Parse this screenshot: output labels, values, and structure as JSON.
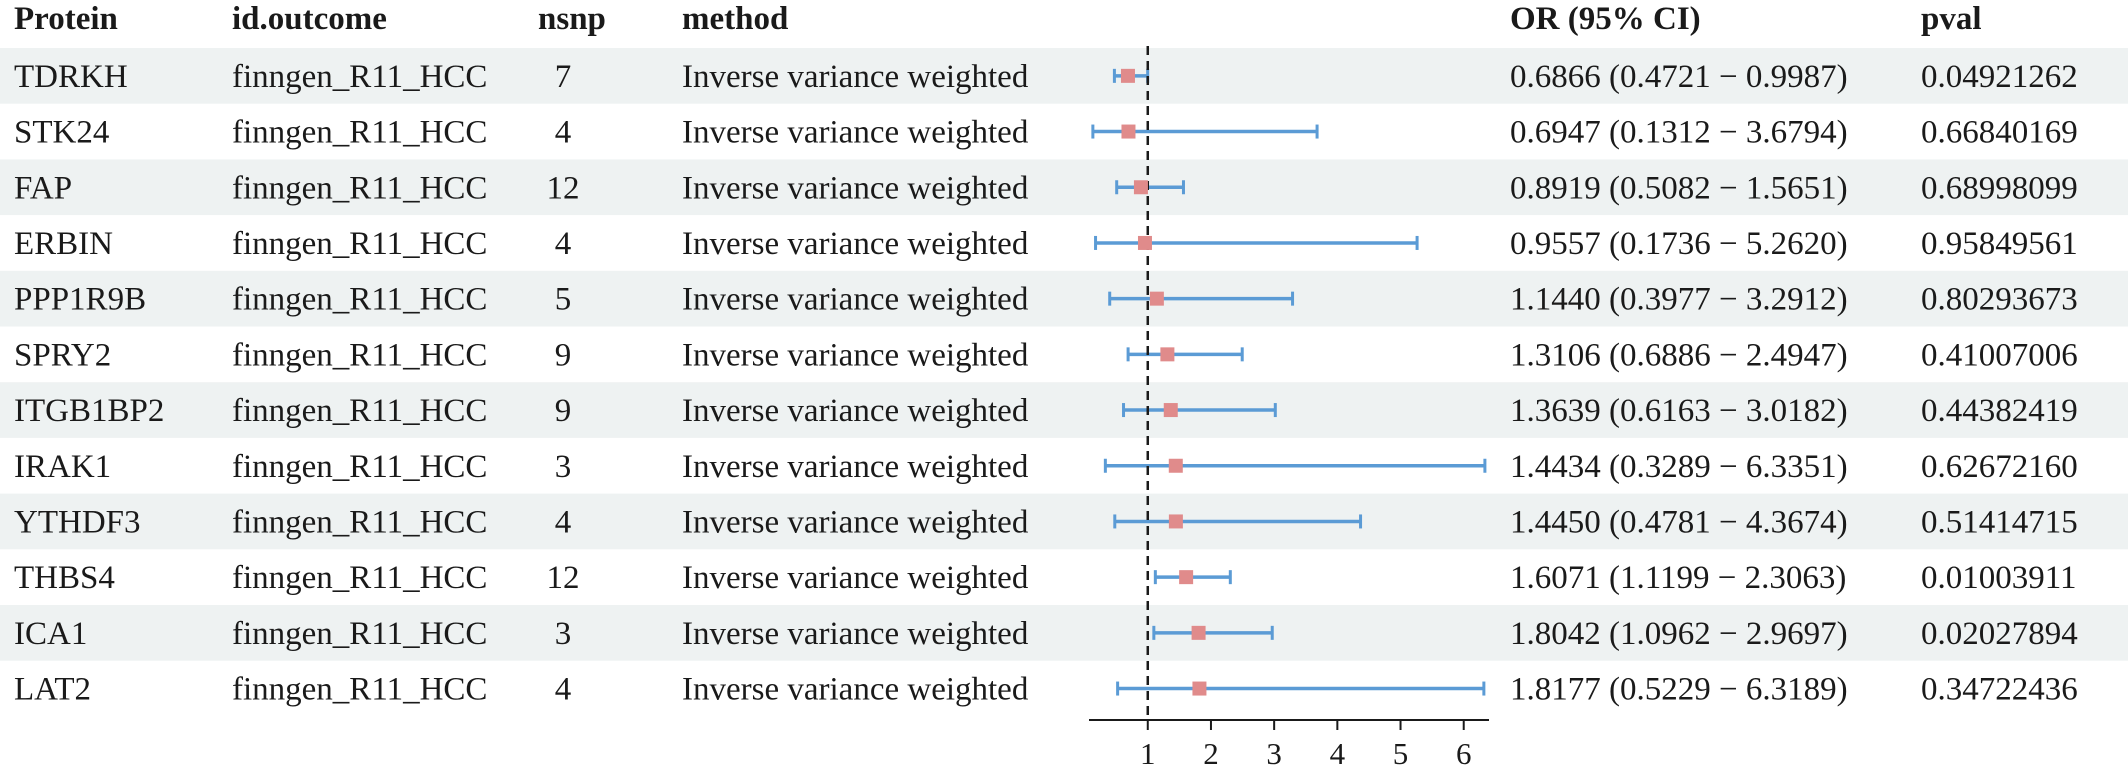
{
  "chart_data": {
    "type": "forest",
    "headers": {
      "protein": "Protein",
      "outcome": "id.outcome",
      "nsnp": "nsnp",
      "method": "method",
      "or_ci": "OR (95% CI)",
      "pval": "pval"
    },
    "rows": [
      {
        "protein": "TDRKH",
        "outcome": "finngen_R11_HCC",
        "nsnp": "7",
        "method": "Inverse variance weighted",
        "or": 0.6866,
        "lo": 0.4721,
        "hi": 0.9987,
        "or_ci": "0.6866 (0.4721 − 0.9987)",
        "pval": "0.04921262"
      },
      {
        "protein": "STK24",
        "outcome": "finngen_R11_HCC",
        "nsnp": "4",
        "method": "Inverse variance weighted",
        "or": 0.6947,
        "lo": 0.1312,
        "hi": 3.6794,
        "or_ci": "0.6947 (0.1312 − 3.6794)",
        "pval": "0.66840169"
      },
      {
        "protein": "FAP",
        "outcome": "finngen_R11_HCC",
        "nsnp": "12",
        "method": "Inverse variance weighted",
        "or": 0.8919,
        "lo": 0.5082,
        "hi": 1.5651,
        "or_ci": "0.8919 (0.5082 − 1.5651)",
        "pval": "0.68998099"
      },
      {
        "protein": "ERBIN",
        "outcome": "finngen_R11_HCC",
        "nsnp": "4",
        "method": "Inverse variance weighted",
        "or": 0.9557,
        "lo": 0.1736,
        "hi": 5.262,
        "or_ci": "0.9557 (0.1736 − 5.2620)",
        "pval": "0.95849561"
      },
      {
        "protein": "PPP1R9B",
        "outcome": "finngen_R11_HCC",
        "nsnp": "5",
        "method": "Inverse variance weighted",
        "or": 1.144,
        "lo": 0.3977,
        "hi": 3.2912,
        "or_ci": "1.1440 (0.3977 − 3.2912)",
        "pval": "0.80293673"
      },
      {
        "protein": "SPRY2",
        "outcome": "finngen_R11_HCC",
        "nsnp": "9",
        "method": "Inverse variance weighted",
        "or": 1.3106,
        "lo": 0.6886,
        "hi": 2.4947,
        "or_ci": "1.3106 (0.6886 − 2.4947)",
        "pval": "0.41007006"
      },
      {
        "protein": "ITGB1BP2",
        "outcome": "finngen_R11_HCC",
        "nsnp": "9",
        "method": "Inverse variance weighted",
        "or": 1.3639,
        "lo": 0.6163,
        "hi": 3.0182,
        "or_ci": "1.3639 (0.6163 − 3.0182)",
        "pval": "0.44382419"
      },
      {
        "protein": "IRAK1",
        "outcome": "finngen_R11_HCC",
        "nsnp": "3",
        "method": "Inverse variance weighted",
        "or": 1.4434,
        "lo": 0.3289,
        "hi": 6.3351,
        "or_ci": "1.4434 (0.3289 − 6.3351)",
        "pval": "0.62672160"
      },
      {
        "protein": "YTHDF3",
        "outcome": "finngen_R11_HCC",
        "nsnp": "4",
        "method": "Inverse variance weighted",
        "or": 1.445,
        "lo": 0.4781,
        "hi": 4.3674,
        "or_ci": "1.4450 (0.4781 − 4.3674)",
        "pval": "0.51414715"
      },
      {
        "protein": "THBS4",
        "outcome": "finngen_R11_HCC",
        "nsnp": "12",
        "method": "Inverse variance weighted",
        "or": 1.6071,
        "lo": 1.1199,
        "hi": 2.3063,
        "or_ci": "1.6071 (1.1199 − 2.3063)",
        "pval": "0.01003911"
      },
      {
        "protein": "ICA1",
        "outcome": "finngen_R11_HCC",
        "nsnp": "3",
        "method": "Inverse variance weighted",
        "or": 1.8042,
        "lo": 1.0962,
        "hi": 2.9697,
        "or_ci": "1.8042 (1.0962 − 2.9697)",
        "pval": "0.02027894"
      },
      {
        "protein": "LAT2",
        "outcome": "finngen_R11_HCC",
        "nsnp": "4",
        "method": "Inverse variance weighted",
        "or": 1.8177,
        "lo": 0.5229,
        "hi": 6.3189,
        "or_ci": "1.8177 (0.5229 − 6.3189)",
        "pval": "0.34722436"
      }
    ],
    "x_axis": {
      "ticks": [
        1,
        2,
        3,
        4,
        5,
        6
      ],
      "range": [
        0.07,
        6.4
      ],
      "reference_line": 1
    },
    "colors": {
      "row_stripe": "#eef2f2",
      "ci_line": "#5b9bd5",
      "point": "#e08b8b",
      "reference_line": "#1a1a1a",
      "text": "#1a1a1a"
    }
  }
}
